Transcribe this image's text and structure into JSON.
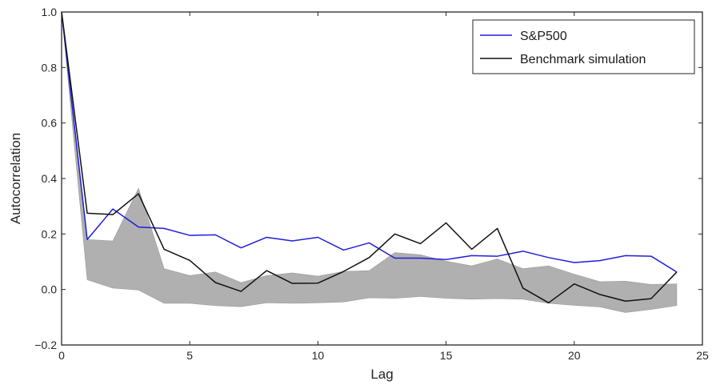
{
  "chart_data": {
    "type": "line",
    "title": "",
    "xlabel": "Lag",
    "ylabel": "Autocorrelation",
    "xlim": [
      0,
      25
    ],
    "ylim": [
      -0.2,
      1.0
    ],
    "xticks": [
      0,
      5,
      10,
      15,
      20,
      25
    ],
    "xtick_labels": [
      "0",
      "5",
      "10",
      "15",
      "20",
      "25"
    ],
    "yticks": [
      -0.2,
      0.0,
      0.2,
      0.4,
      0.6,
      0.8,
      1.0
    ],
    "ytick_labels": [
      "−0.2",
      "0.0",
      "0.2",
      "0.4",
      "0.6",
      "0.8",
      "1.0"
    ],
    "grid": false,
    "legend_position": "top-right",
    "x": [
      0,
      1,
      2,
      3,
      4,
      5,
      6,
      7,
      8,
      9,
      10,
      11,
      12,
      13,
      14,
      15,
      16,
      17,
      18,
      19,
      20,
      21,
      22,
      23,
      24
    ],
    "series": [
      {
        "name": "S&P500",
        "color": "#1f1fdc",
        "values": [
          1.0,
          0.18,
          0.29,
          0.225,
          0.22,
          0.195,
          0.197,
          0.15,
          0.188,
          0.175,
          0.188,
          0.142,
          0.168,
          0.113,
          0.113,
          0.108,
          0.122,
          0.12,
          0.138,
          0.115,
          0.097,
          0.104,
          0.122,
          0.12,
          0.063
        ]
      },
      {
        "name": "Benchmark simulation",
        "color": "#111111",
        "values": [
          1.0,
          0.275,
          0.27,
          0.345,
          0.145,
          0.105,
          0.025,
          -0.007,
          0.068,
          0.022,
          0.023,
          0.065,
          0.115,
          0.2,
          0.165,
          0.24,
          0.145,
          0.22,
          0.005,
          -0.048,
          0.02,
          -0.018,
          -0.042,
          -0.033,
          0.063
        ]
      }
    ],
    "band": {
      "color": "#b0b0b0",
      "upper": [
        1.0,
        0.18,
        0.175,
        0.365,
        0.075,
        0.05,
        0.063,
        0.025,
        0.05,
        0.06,
        0.048,
        0.065,
        0.068,
        0.133,
        0.125,
        0.102,
        0.085,
        0.11,
        0.075,
        0.085,
        0.055,
        0.028,
        0.03,
        0.018,
        0.02
      ],
      "lower": [
        1.0,
        0.035,
        0.005,
        -0.002,
        -0.05,
        -0.05,
        -0.058,
        -0.062,
        -0.048,
        -0.05,
        -0.048,
        -0.045,
        -0.03,
        -0.032,
        -0.025,
        -0.032,
        -0.035,
        -0.033,
        -0.035,
        -0.05,
        -0.057,
        -0.063,
        -0.083,
        -0.072,
        -0.058
      ]
    }
  }
}
